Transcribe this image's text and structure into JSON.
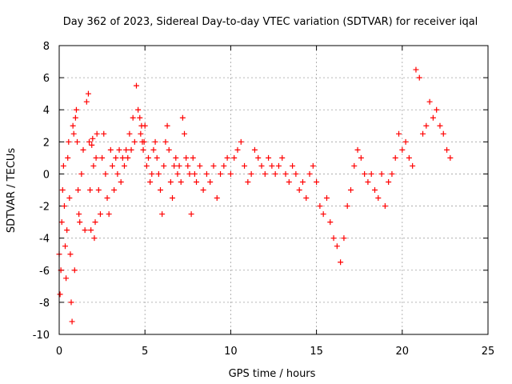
{
  "chart_data": {
    "type": "scatter",
    "title": "Day 362 of 2023, Sidereal Day-to-day VTEC variation (SDTVAR) for receiver iqal",
    "xlabel": "GPS time / hours",
    "ylabel": "SDTVAR / TECUs",
    "xlim": [
      0,
      25
    ],
    "ylim": [
      -10,
      8
    ],
    "xticks": [
      0,
      5,
      10,
      15,
      20,
      25
    ],
    "yticks": [
      -10,
      -8,
      -6,
      -4,
      -2,
      0,
      2,
      4,
      6,
      8
    ],
    "grid": true,
    "marker": "+",
    "color": "#ff0000",
    "series": [
      {
        "name": "SDTVAR",
        "x": [
          0.0,
          0.05,
          0.1,
          0.15,
          0.2,
          0.25,
          0.3,
          0.35,
          0.4,
          0.45,
          0.5,
          0.55,
          0.6,
          0.65,
          0.7,
          0.75,
          0.8,
          0.85,
          0.9,
          0.95,
          1.0,
          1.05,
          1.1,
          1.15,
          1.2,
          1.3,
          1.4,
          1.5,
          1.6,
          1.7,
          1.75,
          1.8,
          1.85,
          1.9,
          1.95,
          2.0,
          2.05,
          2.1,
          2.15,
          2.2,
          2.3,
          2.4,
          2.5,
          2.6,
          2.7,
          2.8,
          2.9,
          3.0,
          3.1,
          3.2,
          3.3,
          3.4,
          3.5,
          3.6,
          3.7,
          3.8,
          3.9,
          4.0,
          4.1,
          4.2,
          4.3,
          4.4,
          4.5,
          4.6,
          4.7,
          4.75,
          4.8,
          4.85,
          4.9,
          4.95,
          5.0,
          5.1,
          5.2,
          5.3,
          5.4,
          5.5,
          5.6,
          5.7,
          5.8,
          5.9,
          6.0,
          6.1,
          6.2,
          6.3,
          6.4,
          6.5,
          6.6,
          6.7,
          6.8,
          6.9,
          7.0,
          7.1,
          7.2,
          7.3,
          7.4,
          7.5,
          7.6,
          7.7,
          7.8,
          7.9,
          8.0,
          8.2,
          8.4,
          8.6,
          8.8,
          9.0,
          9.2,
          9.4,
          9.6,
          9.8,
          10.0,
          10.2,
          10.4,
          10.6,
          10.8,
          11.0,
          11.2,
          11.4,
          11.6,
          11.8,
          12.0,
          12.2,
          12.4,
          12.6,
          12.8,
          13.0,
          13.2,
          13.4,
          13.6,
          13.8,
          14.0,
          14.2,
          14.4,
          14.6,
          14.8,
          15.0,
          15.2,
          15.4,
          15.6,
          15.8,
          16.0,
          16.2,
          16.4,
          16.6,
          16.8,
          17.0,
          17.2,
          17.4,
          17.6,
          17.8,
          18.0,
          18.2,
          18.4,
          18.6,
          18.8,
          19.0,
          19.2,
          19.4,
          19.6,
          19.8,
          20.0,
          20.2,
          20.4,
          20.6,
          20.8,
          21.0,
          21.2,
          21.4,
          21.6,
          21.8,
          22.0,
          22.2,
          22.4,
          22.6,
          22.8
        ],
        "y": [
          -5.0,
          -7.5,
          -6.0,
          -3.0,
          -1.0,
          0.5,
          -2.0,
          -4.5,
          -6.5,
          -3.5,
          1.0,
          2.0,
          -1.5,
          -5.0,
          -8.0,
          -9.2,
          3.0,
          2.5,
          -6.0,
          3.5,
          4.0,
          2.0,
          -1.0,
          -2.5,
          -3.0,
          0.0,
          1.5,
          -3.5,
          4.5,
          5.0,
          2.0,
          -1.0,
          -3.5,
          1.8,
          2.2,
          0.5,
          -4.0,
          -3.0,
          1.0,
          2.5,
          -1.0,
          -2.5,
          1.0,
          2.5,
          0.0,
          -1.5,
          -2.5,
          1.5,
          0.5,
          -1.0,
          1.0,
          0.0,
          1.5,
          -0.5,
          1.0,
          0.5,
          1.5,
          1.0,
          2.5,
          1.5,
          3.5,
          2.0,
          5.5,
          4.0,
          3.5,
          2.5,
          3.0,
          2.0,
          1.5,
          2.0,
          3.0,
          0.5,
          1.0,
          -0.5,
          0.0,
          1.5,
          2.0,
          1.0,
          0.0,
          -1.0,
          -2.5,
          0.5,
          2.0,
          3.0,
          1.5,
          -0.5,
          -1.5,
          0.5,
          1.0,
          0.0,
          0.5,
          -0.5,
          3.5,
          2.5,
          1.0,
          0.5,
          0.0,
          -2.5,
          1.0,
          0.0,
          -0.5,
          0.5,
          -1.0,
          0.0,
          -0.5,
          0.5,
          -1.5,
          0.0,
          0.5,
          1.0,
          0.0,
          1.0,
          1.5,
          2.0,
          0.5,
          -0.5,
          0.0,
          1.5,
          1.0,
          0.5,
          0.0,
          1.0,
          0.5,
          0.0,
          0.5,
          1.0,
          0.0,
          -0.5,
          0.5,
          0.0,
          -1.0,
          -0.5,
          -1.5,
          0.0,
          0.5,
          -0.5,
          -2.0,
          -2.5,
          -1.5,
          -3.0,
          -4.0,
          -4.5,
          -5.5,
          -4.0,
          -2.0,
          -1.0,
          0.5,
          1.5,
          1.0,
          0.0,
          -0.5,
          0.0,
          -1.0,
          -1.5,
          0.0,
          -2.0,
          -0.5,
          0.0,
          1.0,
          2.5,
          1.5,
          2.0,
          1.0,
          0.5,
          6.5,
          6.0,
          2.5,
          3.0,
          4.5,
          3.5,
          4.0,
          3.0,
          2.5,
          1.5,
          1.0
        ]
      }
    ]
  }
}
